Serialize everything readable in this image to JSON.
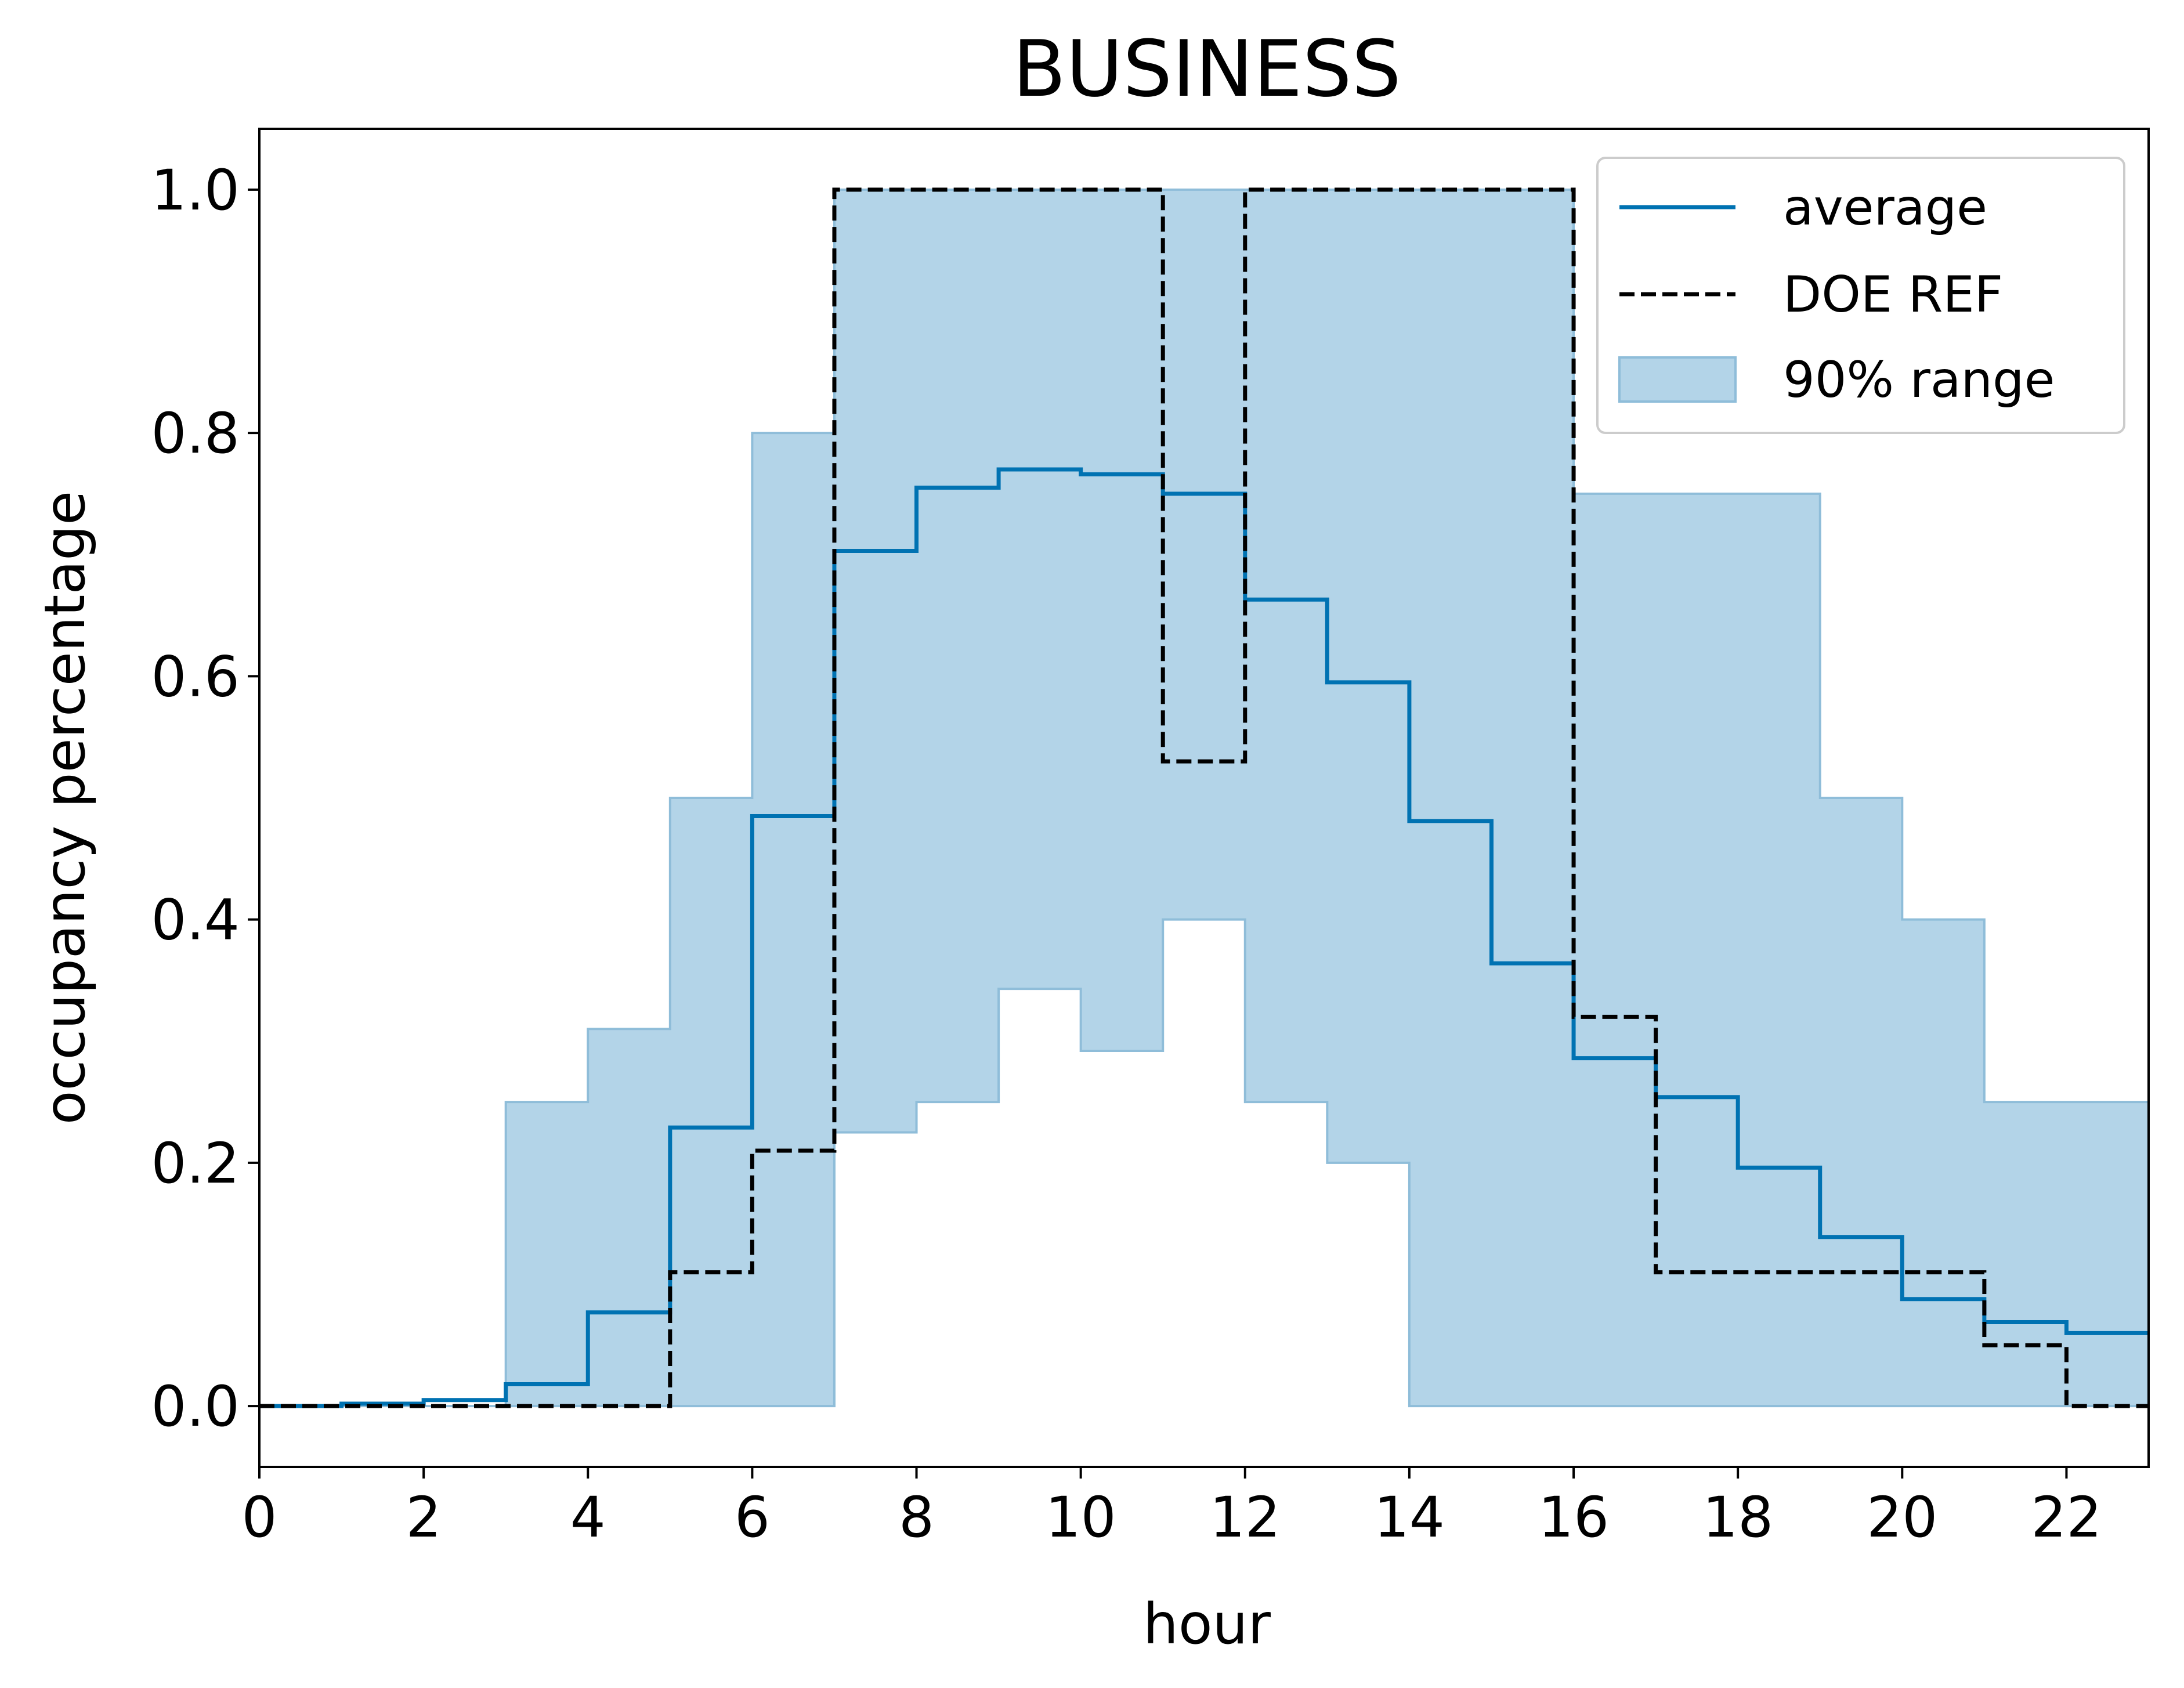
{
  "chart_data": {
    "type": "line",
    "title": "BUSINESS",
    "xlabel": "hour",
    "ylabel": "occupancy percentage",
    "xlim": [
      0,
      23
    ],
    "ylim": [
      -0.05,
      1.05
    ],
    "xticks": [
      0,
      2,
      4,
      6,
      8,
      10,
      12,
      14,
      16,
      18,
      20,
      22
    ],
    "xtick_labels": [
      "0",
      "2",
      "4",
      "6",
      "8",
      "10",
      "12",
      "14",
      "16",
      "18",
      "20",
      "22"
    ],
    "yticks": [
      0.0,
      0.2,
      0.4,
      0.6,
      0.8,
      1.0
    ],
    "ytick_labels": [
      "0.0",
      "0.2",
      "0.4",
      "0.6",
      "0.8",
      "1.0"
    ],
    "grid": false,
    "legend_position": "top-right",
    "step": "post",
    "x": [
      0,
      1,
      2,
      3,
      4,
      5,
      6,
      7,
      8,
      9,
      10,
      11,
      12,
      13,
      14,
      15,
      16,
      17,
      18,
      19,
      20,
      21,
      22,
      23
    ],
    "series": [
      {
        "name": "average",
        "kind": "step-line",
        "color": "#0072b2",
        "values": [
          0.0,
          0.002,
          0.005,
          0.018,
          0.077,
          0.229,
          0.485,
          0.703,
          0.755,
          0.77,
          0.766,
          0.75,
          0.663,
          0.595,
          0.481,
          0.364,
          0.286,
          0.254,
          0.196,
          0.139,
          0.088,
          0.069,
          0.06,
          0.06
        ]
      },
      {
        "name": "DOE REF",
        "kind": "step-dashed",
        "color": "#000000",
        "values": [
          0.0,
          0.0,
          0.0,
          0.0,
          0.0,
          0.11,
          0.21,
          1.0,
          1.0,
          1.0,
          1.0,
          0.53,
          1.0,
          1.0,
          1.0,
          1.0,
          0.32,
          0.11,
          0.11,
          0.11,
          0.11,
          0.05,
          0.0,
          0.0
        ]
      },
      {
        "name": "90% range",
        "kind": "step-band",
        "color": "#b3d4e8",
        "edge_color": "#8fbdd9",
        "lower": [
          0.0,
          0.0,
          0.0,
          0.0,
          0.0,
          0.0,
          0.0,
          0.225,
          0.25,
          0.343,
          0.292,
          0.4,
          0.25,
          0.2,
          0.0,
          0.0,
          0.0,
          0.0,
          0.0,
          0.0,
          0.0,
          0.0,
          0.0,
          0.0
        ],
        "upper": [
          0.0,
          0.0,
          0.0,
          0.25,
          0.31,
          0.5,
          0.8,
          1.0,
          1.0,
          1.0,
          1.0,
          1.0,
          1.0,
          1.0,
          1.0,
          1.0,
          0.75,
          0.75,
          0.75,
          0.5,
          0.4,
          0.25,
          0.25,
          0.25
        ]
      }
    ]
  }
}
